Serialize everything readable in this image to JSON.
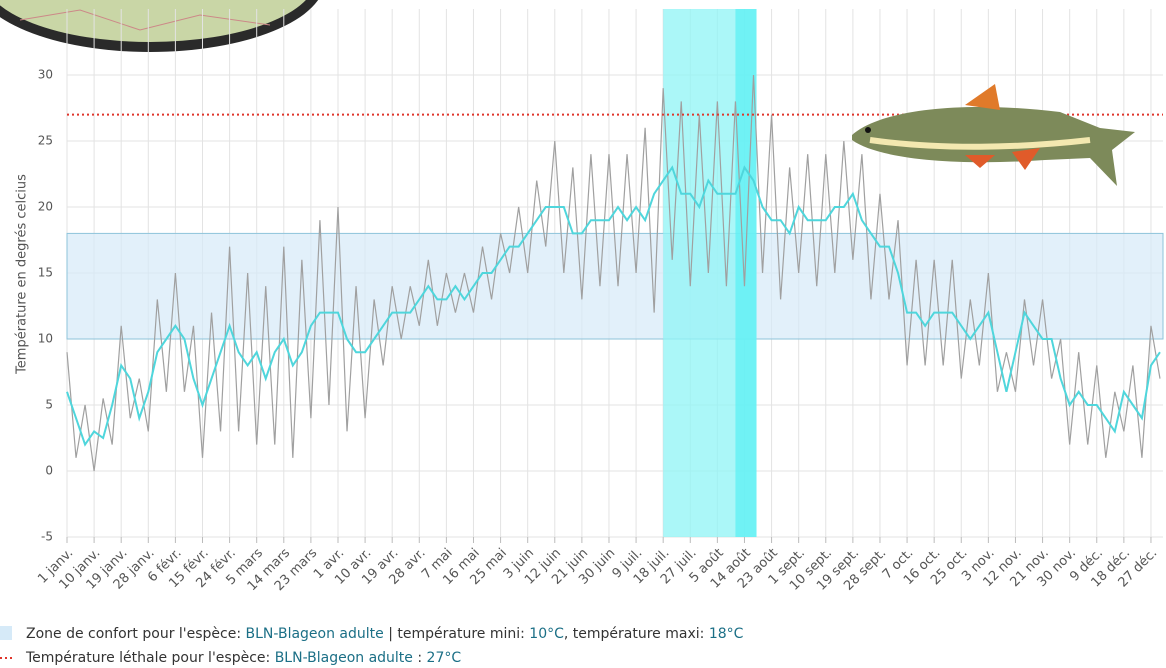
{
  "chart_data": {
    "type": "line",
    "y_label": "Température en degrés celcius",
    "xlim": [
      1,
      365
    ],
    "ylim": [
      -5,
      35
    ],
    "yticks": [
      -5,
      0,
      5,
      10,
      15,
      20,
      25,
      30
    ],
    "xticks": [
      {
        "value": 1,
        "label": "1 janv."
      },
      {
        "value": 10,
        "label": "10 janv."
      },
      {
        "value": 19,
        "label": "19 janv."
      },
      {
        "value": 28,
        "label": "28 janv."
      },
      {
        "value": 37,
        "label": "6 févr."
      },
      {
        "value": 46,
        "label": "15 févr."
      },
      {
        "value": 55,
        "label": "24 févr."
      },
      {
        "value": 64,
        "label": "5 mars"
      },
      {
        "value": 73,
        "label": "14 mars"
      },
      {
        "value": 82,
        "label": "23 mars"
      },
      {
        "value": 91,
        "label": "1 avr."
      },
      {
        "value": 100,
        "label": "10 avr."
      },
      {
        "value": 109,
        "label": "19 avr."
      },
      {
        "value": 118,
        "label": "28 avr."
      },
      {
        "value": 127,
        "label": "7 mai"
      },
      {
        "value": 136,
        "label": "16 mai"
      },
      {
        "value": 145,
        "label": "25 mai"
      },
      {
        "value": 154,
        "label": "3 juin"
      },
      {
        "value": 163,
        "label": "12 juin"
      },
      {
        "value": 172,
        "label": "21 juin"
      },
      {
        "value": 181,
        "label": "30 juin"
      },
      {
        "value": 190,
        "label": "9 juil."
      },
      {
        "value": 199,
        "label": "18 juil."
      },
      {
        "value": 208,
        "label": "27 juil."
      },
      {
        "value": 217,
        "label": "5 août"
      },
      {
        "value": 226,
        "label": "14 août"
      },
      {
        "value": 235,
        "label": "23 août"
      },
      {
        "value": 244,
        "label": "1 sept."
      },
      {
        "value": 253,
        "label": "10 sept."
      },
      {
        "value": 262,
        "label": "19 sept."
      },
      {
        "value": 271,
        "label": "28 sept."
      },
      {
        "value": 280,
        "label": "7 oct."
      },
      {
        "value": 289,
        "label": "16 oct."
      },
      {
        "value": 298,
        "label": "25 oct."
      },
      {
        "value": 307,
        "label": "3 nov."
      },
      {
        "value": 316,
        "label": "12 nov."
      },
      {
        "value": 325,
        "label": "21 nov."
      },
      {
        "value": 334,
        "label": "30 nov."
      },
      {
        "value": 343,
        "label": "9 déc."
      },
      {
        "value": 352,
        "label": "18 déc."
      },
      {
        "value": 361,
        "label": "27 déc."
      }
    ],
    "grid": true,
    "comfort_zone": {
      "range": [
        10,
        18
      ],
      "color": "#d6eaf8"
    },
    "lethal": {
      "value": 27,
      "color": "#e0352b"
    },
    "highlights": [
      {
        "range": [
          199,
          230
        ],
        "color": "#8ff4f6"
      },
      {
        "range": [
          223,
          230
        ],
        "color": "#5cf0f4"
      }
    ],
    "x": [
      1,
      4,
      7,
      10,
      13,
      16,
      19,
      22,
      25,
      28,
      31,
      34,
      37,
      40,
      43,
      46,
      49,
      52,
      55,
      58,
      61,
      64,
      67,
      70,
      73,
      76,
      79,
      82,
      85,
      88,
      91,
      94,
      97,
      100,
      103,
      106,
      109,
      112,
      115,
      118,
      121,
      124,
      127,
      130,
      133,
      136,
      139,
      142,
      145,
      148,
      151,
      154,
      157,
      160,
      163,
      166,
      169,
      172,
      175,
      178,
      181,
      184,
      187,
      190,
      193,
      196,
      199,
      202,
      205,
      208,
      211,
      214,
      217,
      220,
      223,
      226,
      229,
      232,
      235,
      238,
      241,
      244,
      247,
      250,
      253,
      256,
      259,
      262,
      265,
      268,
      271,
      274,
      277,
      280,
      283,
      286,
      289,
      292,
      295,
      298,
      301,
      304,
      307,
      310,
      313,
      316,
      319,
      322,
      325,
      328,
      331,
      334,
      337,
      340,
      343,
      346,
      349,
      352,
      355,
      358,
      361,
      364
    ],
    "series": [
      {
        "color": "#a0a0a0",
        "values": [
          9,
          1,
          5,
          0,
          5.5,
          2,
          11,
          4,
          7,
          3,
          13,
          6,
          15,
          6,
          11,
          1,
          12,
          3,
          17,
          3,
          15,
          2,
          14,
          2,
          17,
          1,
          16,
          4,
          19,
          5,
          20,
          3,
          14,
          4,
          13,
          8,
          14,
          10,
          14,
          11,
          16,
          11,
          15,
          12,
          15,
          12,
          17,
          13,
          18,
          15,
          20,
          15,
          22,
          17,
          25,
          15,
          23,
          13,
          24,
          14,
          24,
          14,
          24,
          15,
          26,
          12,
          29,
          16,
          28,
          14,
          27,
          15,
          28,
          14,
          28,
          14,
          30,
          15,
          27,
          13,
          23,
          15,
          24,
          14,
          24,
          15,
          25,
          16,
          24,
          13,
          21,
          13,
          19,
          8,
          16,
          8,
          16,
          8,
          16,
          7,
          13,
          8,
          15,
          6,
          9,
          6,
          13,
          8,
          13,
          7,
          10,
          2,
          9,
          2,
          8,
          1,
          6,
          3,
          8,
          1,
          11,
          7
        ]
      },
      {
        "color": "#4fd6dc",
        "values": [
          6,
          4,
          2,
          3,
          2.5,
          5,
          8,
          7,
          4,
          6,
          9,
          10,
          11,
          10,
          7,
          5,
          7,
          9,
          11,
          9,
          8,
          9,
          7,
          9,
          10,
          8,
          9,
          11,
          12,
          12,
          12,
          10,
          9,
          9,
          10,
          11,
          12,
          12,
          12,
          13,
          14,
          13,
          13,
          14,
          13,
          14,
          15,
          15,
          16,
          17,
          17,
          18,
          19,
          20,
          20,
          20,
          18,
          18,
          19,
          19,
          19,
          20,
          19,
          20,
          19,
          21,
          22,
          23,
          21,
          21,
          20,
          22,
          21,
          21,
          21,
          23,
          22,
          20,
          19,
          19,
          18,
          20,
          19,
          19,
          19,
          20,
          20,
          21,
          19,
          18,
          17,
          17,
          15,
          12,
          12,
          11,
          12,
          12,
          12,
          11,
          10,
          11,
          12,
          9,
          6,
          9,
          12,
          11,
          10,
          10,
          7,
          5,
          6,
          5,
          5,
          4,
          3,
          6,
          5,
          4,
          8,
          9
        ]
      }
    ],
    "legend": [
      {
        "parts": [
          "Zone de confort pour l'espèce: ",
          "BLN-Blageon adulte",
          " | température mini: ",
          "10°C",
          ", température maxi: ",
          "18°C"
        ]
      },
      {
        "parts": [
          "Température léthale pour l'espèce: ",
          "BLN-Blageon adulte",
          " : ",
          "27°C"
        ]
      }
    ]
  }
}
